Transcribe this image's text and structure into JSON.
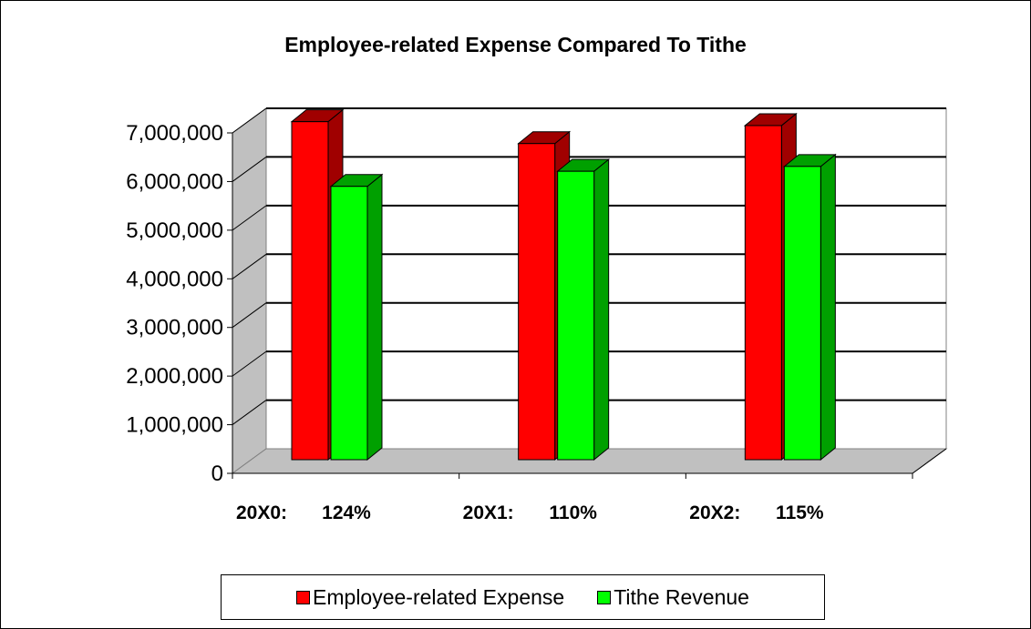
{
  "chart_data": {
    "type": "bar",
    "title": "Employee-related Expense Compared To Tithe",
    "categories": [
      "20X0:",
      "20X1:",
      "20X2:"
    ],
    "category_notes": [
      "124%",
      "110%",
      "115%"
    ],
    "series": [
      {
        "name": "Employee-related Expense",
        "color": "#ff0000",
        "values": [
          6950000,
          6500000,
          6870000
        ]
      },
      {
        "name": "Tithe Revenue",
        "color": "#00ff00",
        "values": [
          5620000,
          5930000,
          6030000
        ]
      }
    ],
    "yticks": [
      "0",
      "1,000,000",
      "2,000,000",
      "3,000,000",
      "4,000,000",
      "5,000,000",
      "6,000,000",
      "7,000,000"
    ],
    "ylim": [
      0,
      7000000
    ],
    "grid": true,
    "legend_position": "bottom",
    "style": "3d-clustered-column"
  }
}
